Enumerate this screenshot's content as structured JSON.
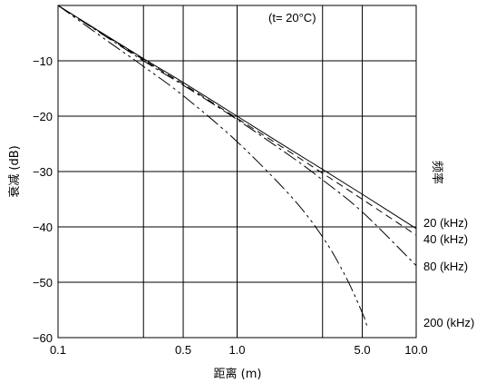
{
  "chart_data": {
    "type": "line",
    "annotation": "(t= 20°C)",
    "xlabel": "距离 (m)",
    "ylabel": "衰减 (dB)",
    "legend_title": "频率",
    "x_scale": "log",
    "xlim": [
      0.1,
      10.0
    ],
    "ylim": [
      -60,
      0
    ],
    "grid": true,
    "x_ticks": [
      {
        "value": 0.1,
        "label": "0.1"
      },
      {
        "value": 0.5,
        "label": "0.5"
      },
      {
        "value": 1.0,
        "label": "1.0"
      },
      {
        "value": 5.0,
        "label": "5.0"
      },
      {
        "value": 10.0,
        "label": "10.0"
      }
    ],
    "x_grid_values": [
      0.1,
      0.3,
      0.5,
      1.0,
      3.0,
      5.0,
      10.0
    ],
    "y_ticks": [
      {
        "value": -10,
        "label": "−10"
      },
      {
        "value": -20,
        "label": "−20"
      },
      {
        "value": -30,
        "label": "−30"
      },
      {
        "value": -40,
        "label": "−40"
      },
      {
        "value": -50,
        "label": "−50"
      },
      {
        "value": -60,
        "label": "−60"
      }
    ],
    "series": [
      {
        "name": "20 (kHz)",
        "style": "solid",
        "x": [
          0.1,
          0.3,
          0.5,
          1.0,
          2.0,
          3.0,
          5.0,
          10.0
        ],
        "y": [
          0,
          -9.6,
          -13.9,
          -20.0,
          -26.1,
          -29.6,
          -34.1,
          -40.3
        ]
      },
      {
        "name": "40 (kHz)",
        "style": "dashed",
        "x": [
          0.1,
          0.3,
          0.5,
          1.0,
          2.0,
          3.0,
          5.0,
          10.0
        ],
        "y": [
          0,
          -9.8,
          -14.2,
          -20.4,
          -26.6,
          -30.3,
          -35.0,
          -41.5
        ]
      },
      {
        "name": "80 (kHz)",
        "style": "dashdot",
        "x": [
          0.1,
          0.3,
          0.5,
          1.0,
          2.0,
          3.0,
          5.0,
          10.0
        ],
        "y": [
          0,
          -10.0,
          -14.4,
          -20.6,
          -27.3,
          -31.5,
          -37.3,
          -47.0
        ]
      },
      {
        "name": "200 (kHz)",
        "style": "dashdotdot",
        "x": [
          0.1,
          0.2,
          0.3,
          0.5,
          1.0,
          2.0,
          3.0,
          4.0,
          5.0,
          5.3
        ],
        "y": [
          0,
          -7.0,
          -11.0,
          -16.3,
          -24.6,
          -34.5,
          -41.8,
          -48.7,
          -55.5,
          -57.8
        ]
      }
    ]
  }
}
